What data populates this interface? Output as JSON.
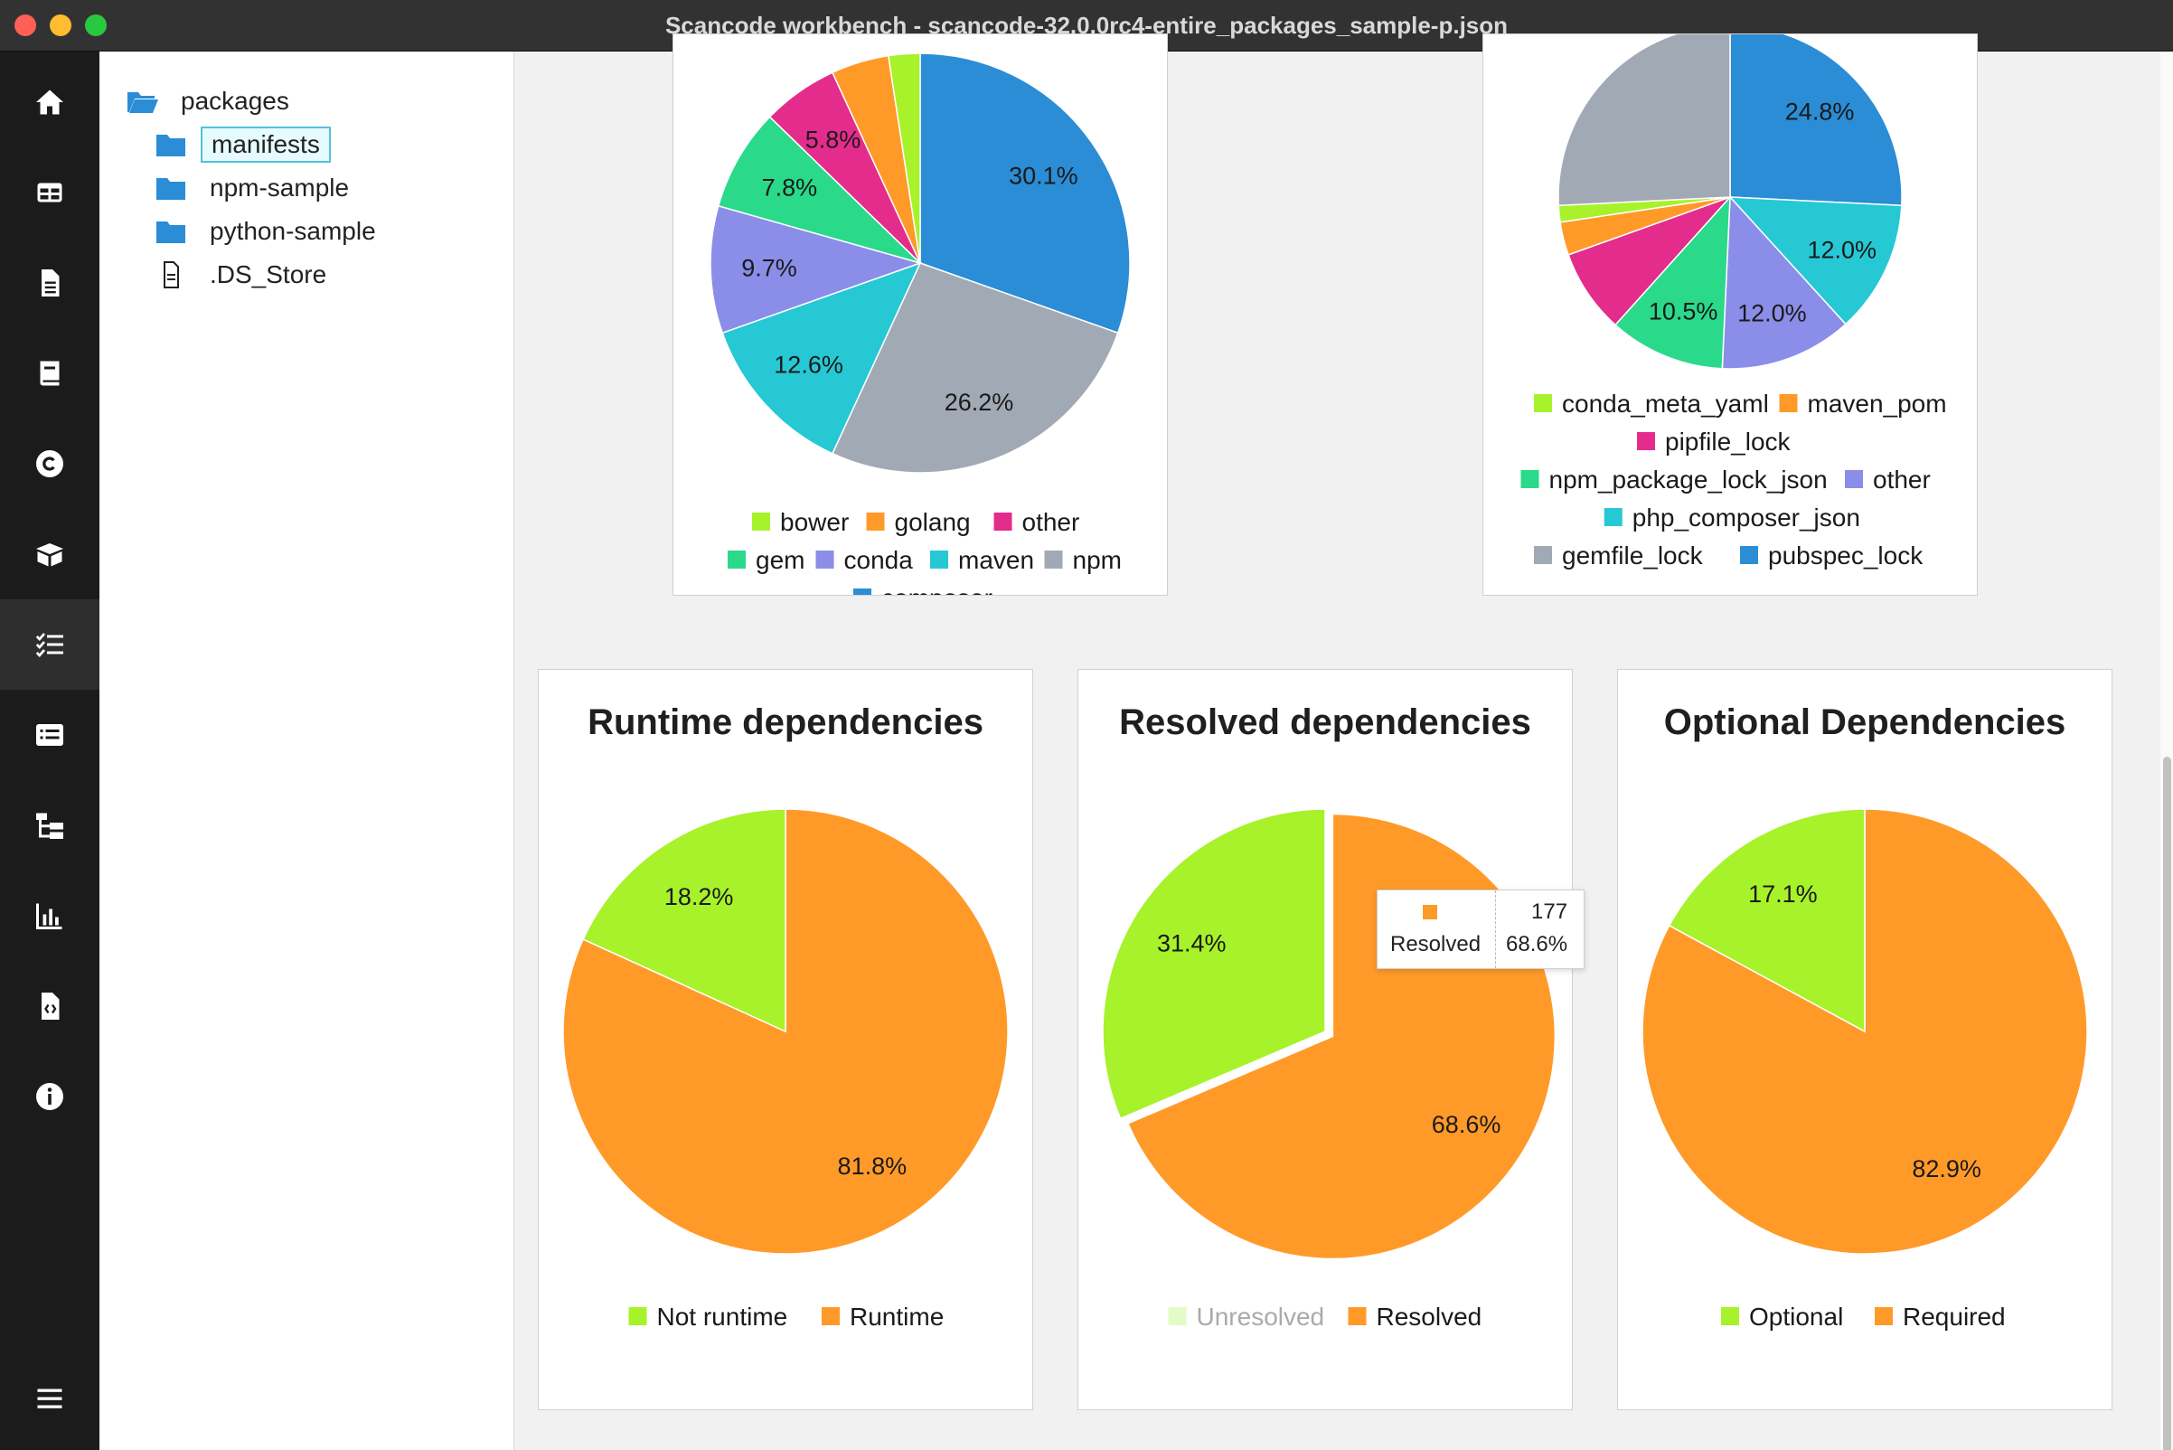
{
  "window": {
    "title": "Scancode workbench - scancode-32.0.0rc4-entire_packages_sample-p.json"
  },
  "nav": {
    "items": [
      {
        "icon": "home-icon"
      },
      {
        "icon": "table-icon"
      },
      {
        "icon": "file-icon"
      },
      {
        "icon": "book-icon"
      },
      {
        "icon": "copyright-icon"
      },
      {
        "icon": "package-icon"
      },
      {
        "icon": "checklist-icon",
        "active": true
      },
      {
        "icon": "list-icon"
      },
      {
        "icon": "tree-icon"
      },
      {
        "icon": "bar-chart-icon"
      },
      {
        "icon": "code-file-icon"
      },
      {
        "icon": "info-icon"
      }
    ],
    "menu_icon": "hamburger-icon"
  },
  "sidebar": {
    "root": "packages",
    "items": [
      {
        "label": "manifests",
        "type": "folder",
        "selected": true
      },
      {
        "label": "npm-sample",
        "type": "folder"
      },
      {
        "label": "python-sample",
        "type": "folder"
      },
      {
        "label": ".DS_Store",
        "type": "file"
      }
    ]
  },
  "colors": {
    "green": "#a7f22a",
    "orange": "#ff9a29",
    "pink": "#e42c8c",
    "teal": "#2ad98a",
    "purple": "#8a8ee8",
    "cyan": "#26c8d4",
    "gray": "#a1a9b4",
    "blue": "#2a8dd6",
    "light_green": "#e4fbc8"
  },
  "charts": {
    "package_types": {
      "title": "",
      "legend": [
        "bower",
        "golang",
        "other",
        "gem",
        "conda",
        "maven",
        "npm",
        "composer"
      ]
    },
    "manifest_types": {
      "title": "",
      "legend": [
        "conda_meta_yaml",
        "maven_pom",
        "pipfile_lock",
        "npm_package_lock_json",
        "other",
        "php_composer_json",
        "gemfile_lock",
        "pubspec_lock"
      ]
    },
    "runtime": {
      "title": "Runtime dependencies",
      "legend": [
        "Not runtime",
        "Runtime"
      ]
    },
    "resolved": {
      "title": "Resolved dependencies",
      "legend": [
        "Unresolved",
        "Resolved"
      ],
      "tooltip": {
        "label": "Resolved",
        "count": "177",
        "percent": "68.6%"
      }
    },
    "optional": {
      "title": "Optional Dependencies",
      "legend": [
        "Optional",
        "Required"
      ]
    }
  },
  "chart_data": [
    {
      "type": "pie",
      "categories": [
        "composer",
        "npm",
        "maven",
        "conda",
        "gem",
        "other",
        "golang",
        "bower"
      ],
      "values": [
        30.1,
        26.2,
        12.6,
        9.7,
        7.8,
        5.8,
        4.4,
        2.4
      ],
      "labels": [
        "30.1%",
        "26.2%",
        "12.6%",
        "9.7%",
        "7.8%",
        "5.8%",
        "",
        ""
      ],
      "colors": [
        "#2a8dd6",
        "#a1a9b4",
        "#26c8d4",
        "#8a8ee8",
        "#2ad98a",
        "#e42c8c",
        "#ff9a29",
        "#a7f22a"
      ],
      "legend": "bottom"
    },
    {
      "type": "pie",
      "categories": [
        "pubspec_lock",
        "php_composer_json",
        "other",
        "npm_package_lock_json",
        "pipfile_lock",
        "maven_pom",
        "conda_meta_yaml",
        "gemfile_lock"
      ],
      "values": [
        24.8,
        12.0,
        12.0,
        10.5,
        7.6,
        3.0,
        1.5,
        24.8
      ],
      "labels": [
        "24.8%",
        "12.0%",
        "12.0%",
        "10.5%",
        "",
        "",
        "",
        ""
      ],
      "colors": [
        "#2a8dd6",
        "#26c8d4",
        "#8a8ee8",
        "#2ad98a",
        "#e42c8c",
        "#ff9a29",
        "#a7f22a",
        "#a1a9b4"
      ],
      "legend": "bottom"
    },
    {
      "type": "pie",
      "title": "Runtime dependencies",
      "categories": [
        "Runtime",
        "Not runtime"
      ],
      "values": [
        81.8,
        18.2
      ],
      "labels": [
        "81.8%",
        "18.2%"
      ],
      "colors": [
        "#ff9a29",
        "#a7f22a"
      ],
      "legend": "bottom"
    },
    {
      "type": "pie",
      "title": "Resolved dependencies",
      "categories": [
        "Resolved",
        "Unresolved"
      ],
      "values": [
        68.6,
        31.4
      ],
      "labels": [
        "68.6%",
        "31.4%"
      ],
      "colors": [
        "#ff9a29",
        "#a7f22a"
      ],
      "legend": "bottom"
    },
    {
      "type": "pie",
      "title": "Optional Dependencies",
      "categories": [
        "Required",
        "Optional"
      ],
      "values": [
        82.9,
        17.1
      ],
      "labels": [
        "82.9%",
        "17.1%"
      ],
      "colors": [
        "#ff9a29",
        "#a7f22a"
      ],
      "legend": "bottom"
    }
  ]
}
